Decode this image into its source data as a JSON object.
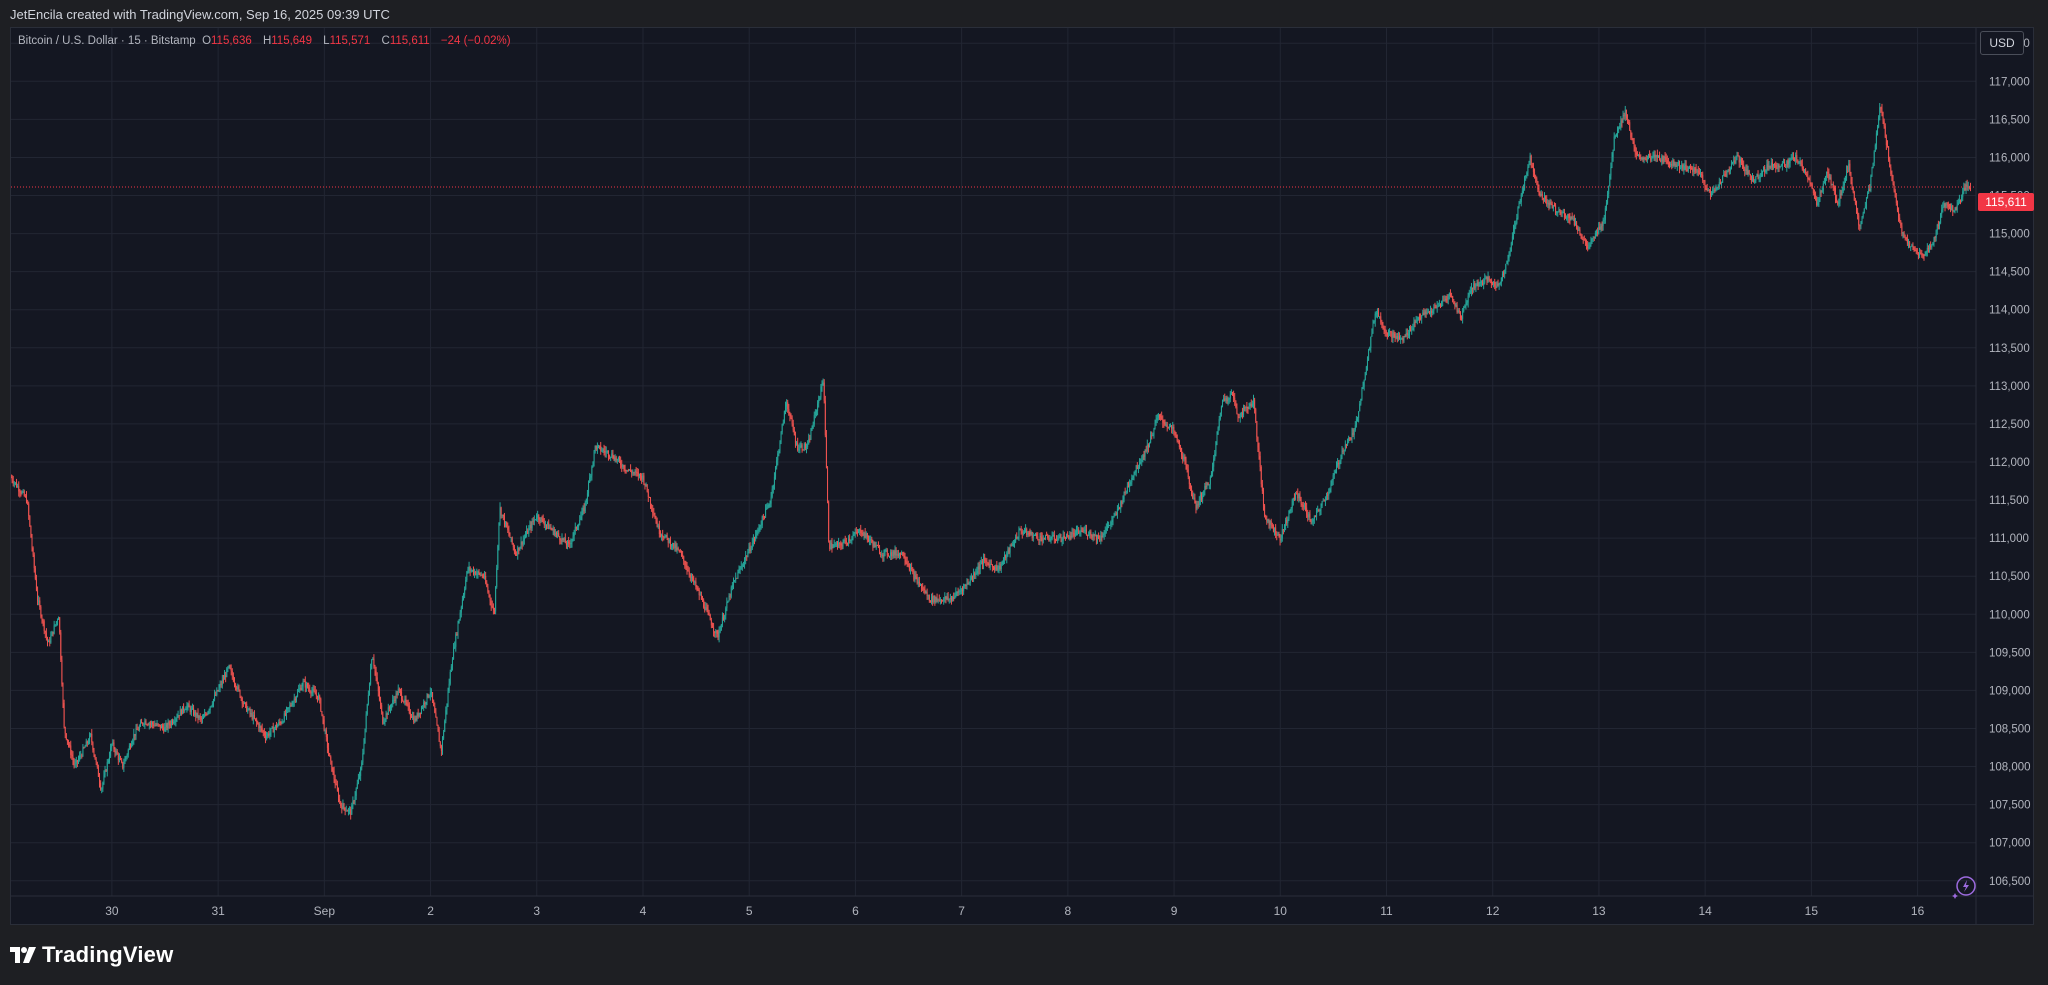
{
  "header": {
    "credit": "JetEncila created with TradingView.com, Sep 16, 2025 09:39 UTC"
  },
  "legend": {
    "symbol": "Bitcoin / U.S. Dollar · 15 · Bitstamp",
    "o_label": "O",
    "o_value": "115,636",
    "h_label": "H",
    "h_value": "115,649",
    "l_label": "L",
    "l_value": "115,571",
    "c_label": "C",
    "c_value": "115,611",
    "change": "−24 (−0.02%)"
  },
  "currency": "USD",
  "last_price_label": "115,611",
  "brand": "TradingView",
  "colors": {
    "up": "#26a69a",
    "down": "#ef5350",
    "background": "#141722",
    "grid": "#222633",
    "price_line": "#f23645"
  },
  "chart_data": {
    "type": "candlestick",
    "symbol": "Bitcoin / U.S. Dollar · 15 · Bitstamp",
    "interval": "15",
    "yticks": [
      "117,500",
      "117,000",
      "116,500",
      "116,000",
      "115,500",
      "115,000",
      "114,500",
      "114,000",
      "113,500",
      "113,000",
      "112,500",
      "112,000",
      "111,500",
      "111,000",
      "110,500",
      "110,000",
      "109,500",
      "109,000",
      "108,500",
      "108,000",
      "107,500",
      "107,000",
      "106,500"
    ],
    "ylim": [
      106300,
      117700
    ],
    "xticks": [
      "30",
      "31",
      "Sep",
      "2",
      "3",
      "4",
      "5",
      "6",
      "7",
      "8",
      "9",
      "10",
      "11",
      "12",
      "13",
      "14",
      "15",
      "16"
    ],
    "xlim": [
      -0.95,
      17.55
    ],
    "last_price": 115611,
    "price_path": [
      [
        -0.95,
        111800
      ],
      [
        -0.8,
        111500
      ],
      [
        -0.7,
        110200
      ],
      [
        -0.6,
        109600
      ],
      [
        -0.5,
        110000
      ],
      [
        -0.45,
        108500
      ],
      [
        -0.35,
        108000
      ],
      [
        -0.2,
        108400
      ],
      [
        -0.1,
        107700
      ],
      [
        0.0,
        108300
      ],
      [
        0.1,
        108000
      ],
      [
        0.2,
        108400
      ],
      [
        0.3,
        108600
      ],
      [
        0.5,
        108500
      ],
      [
        0.7,
        108800
      ],
      [
        0.85,
        108600
      ],
      [
        1.0,
        109000
      ],
      [
        1.1,
        109300
      ],
      [
        1.25,
        108800
      ],
      [
        1.45,
        108400
      ],
      [
        1.6,
        108600
      ],
      [
        1.8,
        109100
      ],
      [
        1.95,
        108900
      ],
      [
        2.05,
        108100
      ],
      [
        2.15,
        107500
      ],
      [
        2.25,
        107400
      ],
      [
        2.35,
        108000
      ],
      [
        2.45,
        109500
      ],
      [
        2.55,
        108600
      ],
      [
        2.7,
        109000
      ],
      [
        2.85,
        108600
      ],
      [
        3.0,
        109000
      ],
      [
        3.1,
        108200
      ],
      [
        3.2,
        109400
      ],
      [
        3.35,
        110600
      ],
      [
        3.5,
        110500
      ],
      [
        3.6,
        110000
      ],
      [
        3.65,
        111400
      ],
      [
        3.8,
        110800
      ],
      [
        4.0,
        111300
      ],
      [
        4.15,
        111100
      ],
      [
        4.3,
        110900
      ],
      [
        4.45,
        111400
      ],
      [
        4.55,
        112200
      ],
      [
        4.7,
        112100
      ],
      [
        4.85,
        111900
      ],
      [
        5.0,
        111800
      ],
      [
        5.15,
        111100
      ],
      [
        5.35,
        110800
      ],
      [
        5.55,
        110200
      ],
      [
        5.7,
        109700
      ],
      [
        5.85,
        110400
      ],
      [
        6.05,
        111000
      ],
      [
        6.2,
        111500
      ],
      [
        6.35,
        112800
      ],
      [
        6.45,
        112200
      ],
      [
        6.55,
        112200
      ],
      [
        6.7,
        113100
      ],
      [
        6.75,
        110900
      ],
      [
        6.85,
        110900
      ],
      [
        7.05,
        111100
      ],
      [
        7.25,
        110800
      ],
      [
        7.45,
        110800
      ],
      [
        7.55,
        110500
      ],
      [
        7.7,
        110200
      ],
      [
        7.9,
        110200
      ],
      [
        8.05,
        110400
      ],
      [
        8.2,
        110700
      ],
      [
        8.35,
        110600
      ],
      [
        8.55,
        111100
      ],
      [
        8.75,
        111000
      ],
      [
        8.95,
        111000
      ],
      [
        9.15,
        111100
      ],
      [
        9.3,
        111000
      ],
      [
        9.45,
        111300
      ],
      [
        9.6,
        111800
      ],
      [
        9.75,
        112200
      ],
      [
        9.85,
        112600
      ],
      [
        10.0,
        112400
      ],
      [
        10.1,
        112000
      ],
      [
        10.2,
        111400
      ],
      [
        10.35,
        111800
      ],
      [
        10.45,
        112800
      ],
      [
        10.55,
        112900
      ],
      [
        10.6,
        112600
      ],
      [
        10.75,
        112800
      ],
      [
        10.85,
        111300
      ],
      [
        11.0,
        111000
      ],
      [
        11.15,
        111600
      ],
      [
        11.3,
        111200
      ],
      [
        11.45,
        111600
      ],
      [
        11.6,
        112200
      ],
      [
        11.7,
        112400
      ],
      [
        11.8,
        113200
      ],
      [
        11.9,
        114000
      ],
      [
        12.0,
        113700
      ],
      [
        12.15,
        113600
      ],
      [
        12.3,
        113900
      ],
      [
        12.45,
        114000
      ],
      [
        12.6,
        114200
      ],
      [
        12.7,
        113900
      ],
      [
        12.8,
        114300
      ],
      [
        12.95,
        114400
      ],
      [
        13.05,
        114300
      ],
      [
        13.15,
        114700
      ],
      [
        13.25,
        115400
      ],
      [
        13.35,
        116000
      ],
      [
        13.45,
        115500
      ],
      [
        13.6,
        115300
      ],
      [
        13.75,
        115200
      ],
      [
        13.9,
        114800
      ],
      [
        14.05,
        115200
      ],
      [
        14.15,
        116300
      ],
      [
        14.25,
        116600
      ],
      [
        14.35,
        116000
      ],
      [
        14.55,
        116000
      ],
      [
        14.75,
        115900
      ],
      [
        14.95,
        115800
      ],
      [
        15.05,
        115500
      ],
      [
        15.15,
        115700
      ],
      [
        15.3,
        116000
      ],
      [
        15.45,
        115700
      ],
      [
        15.6,
        115900
      ],
      [
        15.75,
        115900
      ],
      [
        15.85,
        116000
      ],
      [
        15.95,
        115800
      ],
      [
        16.05,
        115400
      ],
      [
        16.15,
        115800
      ],
      [
        16.25,
        115400
      ],
      [
        16.35,
        115900
      ],
      [
        16.45,
        115100
      ],
      [
        16.55,
        115600
      ],
      [
        16.65,
        116700
      ],
      [
        16.75,
        115800
      ],
      [
        16.85,
        115000
      ],
      [
        16.95,
        114800
      ],
      [
        17.05,
        114700
      ],
      [
        17.15,
        114900
      ],
      [
        17.25,
        115400
      ],
      [
        17.35,
        115300
      ],
      [
        17.45,
        115600
      ],
      [
        17.5,
        115611
      ]
    ]
  }
}
